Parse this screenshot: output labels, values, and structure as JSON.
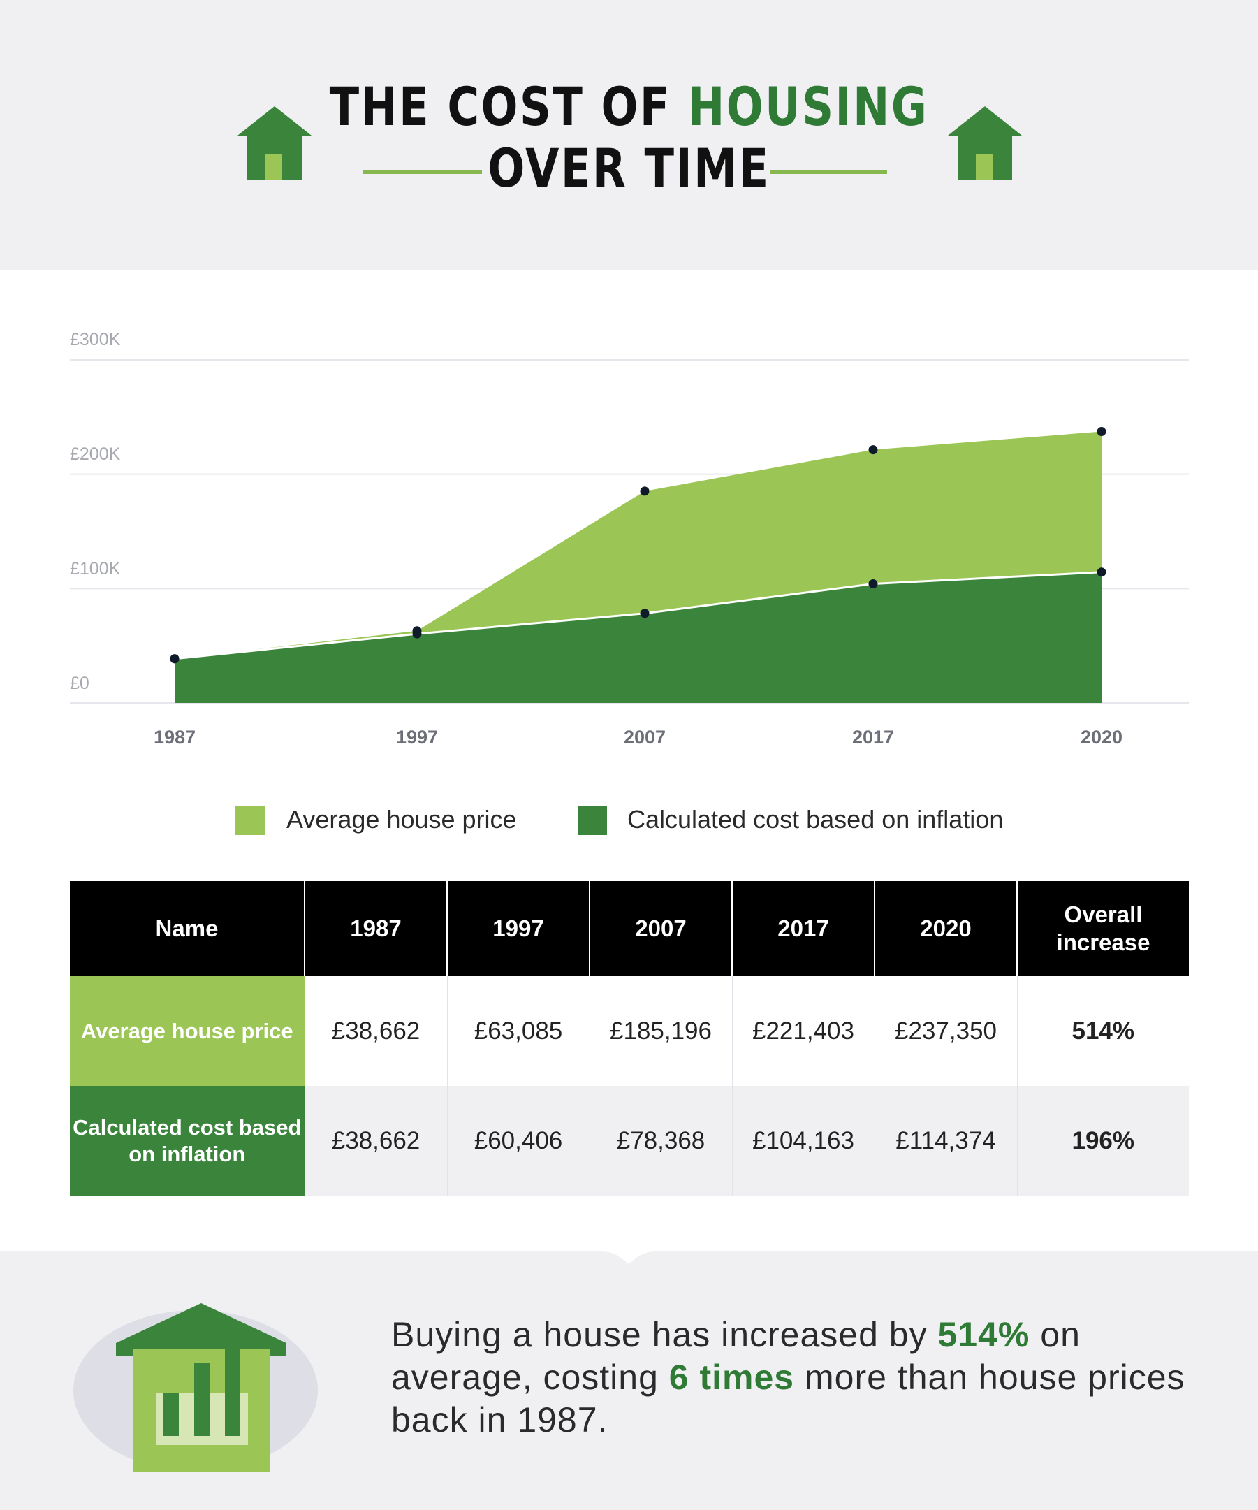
{
  "title": {
    "part1": "THE COST OF ",
    "highlight": "HOUSING",
    "line2": "OVER TIME"
  },
  "colors": {
    "light_green": "#9bc655",
    "dark_green": "#3a843c",
    "title_green": "#2f7a35",
    "header_bg": "#f0f0f3"
  },
  "chart_data": {
    "type": "area",
    "x": [
      "1987",
      "1997",
      "2007",
      "2017",
      "2020"
    ],
    "series": [
      {
        "name": "Average house price",
        "values": [
          38662,
          63085,
          185196,
          221403,
          237350
        ],
        "color": "#9bc655"
      },
      {
        "name": "Calculated cost based on inflation",
        "values": [
          38662,
          60406,
          78368,
          104163,
          114374
        ],
        "color": "#3a843c"
      }
    ],
    "ylim": [
      0,
      300000
    ],
    "yticks": [
      "£0",
      "£100K",
      "£200K",
      "£300K"
    ],
    "grid": true,
    "legend_position": "bottom"
  },
  "legend": {
    "avg_label": "Average house price",
    "infl_label": "Calculated cost based on inflation"
  },
  "table": {
    "headers": [
      "Name",
      "1987",
      "1997",
      "2007",
      "2017",
      "2020",
      "Overall increase"
    ],
    "rows": [
      {
        "name": "Average house price",
        "cells": [
          "£38,662",
          "£63,085",
          "£185,196",
          "£221,403",
          "£237,350"
        ],
        "overall": "514%"
      },
      {
        "name": "Calculated cost based on inflation",
        "cells": [
          "£38,662",
          "£60,406",
          "£78,368",
          "£104,163",
          "£114,374"
        ],
        "overall": "196%"
      }
    ]
  },
  "footer": {
    "text_a": "Buying a house has increased by ",
    "hl_a": "514%",
    "text_b": " on average, costing ",
    "hl_b": "6 times",
    "text_c": " more than house prices back in 1987."
  }
}
